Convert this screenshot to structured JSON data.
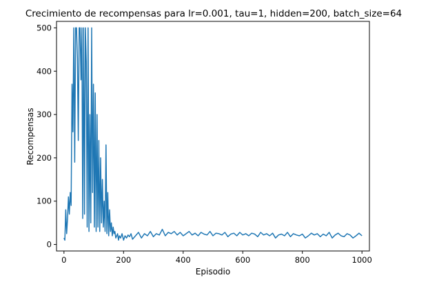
{
  "chart_data": {
    "type": "line",
    "title": "Crecimiento de recompensas para lr=0.001, tau=1, hidden=200, batch_size=64",
    "xlabel": "Episodio",
    "ylabel": "Recompensas",
    "xlim": [
      -25,
      1025
    ],
    "ylim": [
      -15,
      515
    ],
    "xticks": [
      0,
      200,
      400,
      600,
      800,
      1000
    ],
    "yticks": [
      0,
      100,
      200,
      300,
      400,
      500
    ],
    "grid": false,
    "series": [
      {
        "color": "#1f77b4",
        "points_x": [
          0,
          3,
          6,
          9,
          12,
          15,
          18,
          21,
          24,
          27,
          30,
          33,
          36,
          39,
          42,
          45,
          48,
          51,
          54,
          57,
          60,
          63,
          66,
          69,
          72,
          75,
          78,
          81,
          84,
          87,
          90,
          93,
          96,
          99,
          102,
          105,
          108,
          111,
          114,
          117,
          120,
          123,
          126,
          129,
          132,
          135,
          138,
          141,
          144,
          147,
          150,
          153,
          156,
          159,
          162,
          165,
          168,
          171,
          174,
          177,
          180,
          183,
          186,
          190,
          195,
          200,
          205,
          210,
          215,
          220,
          225,
          230,
          240,
          250,
          260,
          270,
          280,
          290,
          300,
          310,
          320,
          330,
          340,
          350,
          360,
          370,
          380,
          390,
          400,
          410,
          420,
          430,
          440,
          450,
          460,
          470,
          480,
          490,
          500,
          510,
          520,
          530,
          540,
          550,
          560,
          570,
          580,
          590,
          600,
          610,
          620,
          630,
          640,
          650,
          660,
          670,
          680,
          690,
          700,
          710,
          720,
          730,
          740,
          750,
          760,
          770,
          780,
          790,
          800,
          810,
          820,
          830,
          840,
          850,
          860,
          870,
          880,
          890,
          900,
          910,
          920,
          930,
          940,
          950,
          960,
          970,
          980,
          990,
          1000
        ],
        "points_y": [
          15,
          10,
          80,
          25,
          60,
          110,
          70,
          120,
          90,
          370,
          260,
          500,
          190,
          500,
          500,
          430,
          240,
          500,
          500,
          380,
          500,
          60,
          500,
          70,
          500,
          420,
          40,
          500,
          30,
          300,
          50,
          500,
          120,
          370,
          40,
          350,
          30,
          300,
          40,
          240,
          30,
          200,
          50,
          150,
          40,
          100,
          30,
          230,
          25,
          120,
          20,
          80,
          30,
          50,
          20,
          40,
          25,
          30,
          15,
          20,
          25,
          10,
          20,
          15,
          25,
          10,
          20,
          15,
          22,
          18,
          25,
          12,
          20,
          28,
          15,
          25,
          20,
          30,
          18,
          25,
          22,
          35,
          20,
          28,
          25,
          30,
          22,
          28,
          20,
          25,
          30,
          22,
          26,
          20,
          28,
          24,
          22,
          30,
          20,
          26,
          25,
          22,
          28,
          18,
          24,
          26,
          20,
          28,
          22,
          25,
          20,
          26,
          24,
          18,
          28,
          22,
          25,
          20,
          26,
          15,
          22,
          24,
          20,
          28,
          18,
          25,
          22,
          20,
          24,
          15,
          20,
          26,
          22,
          25,
          18,
          24,
          20,
          28,
          15,
          22,
          26,
          20,
          18,
          25,
          22,
          15,
          20,
          26,
          20
        ]
      }
    ]
  }
}
